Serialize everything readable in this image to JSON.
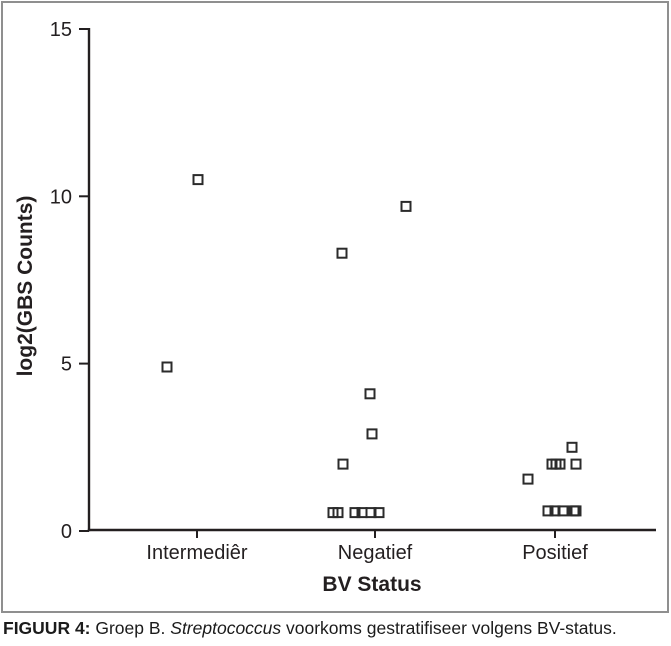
{
  "figure": {
    "caption": {
      "label": "FIGUUR 4:",
      "pre": " Groep B. ",
      "italic": "Streptococcus",
      "post": " voorkoms gestratifiseer volgens BV-status."
    }
  },
  "chart_data": {
    "type": "scatter",
    "title": "",
    "xlabel": "BV Status",
    "ylabel": "log2(GBS Counts)",
    "ylim": [
      0,
      15
    ],
    "yticks": [
      0,
      5,
      10,
      15
    ],
    "ytick_labels": [
      "0",
      "5",
      "10",
      "15"
    ],
    "categories": [
      "Intermediêr",
      "Negatief",
      "Positief"
    ],
    "legend": "none",
    "grid": false,
    "marker": "open-square",
    "marker_color": "#2b2b2b",
    "axis_color": "#231f20",
    "points": [
      {
        "category": "Intermediêr",
        "value": 10.5,
        "dx": 1
      },
      {
        "category": "Intermediêr",
        "value": 4.9,
        "dx": -30
      },
      {
        "category": "Negatief",
        "value": 9.7,
        "dx": 31
      },
      {
        "category": "Negatief",
        "value": 8.3,
        "dx": -33
      },
      {
        "category": "Negatief",
        "value": 4.1,
        "dx": -5
      },
      {
        "category": "Negatief",
        "value": 2.9,
        "dx": -3
      },
      {
        "category": "Negatief",
        "value": 2.0,
        "dx": -32
      },
      {
        "category": "Negatief",
        "value": 0.55,
        "dx": -42
      },
      {
        "category": "Negatief",
        "value": 0.55,
        "dx": -37
      },
      {
        "category": "Negatief",
        "value": 0.55,
        "dx": -20
      },
      {
        "category": "Negatief",
        "value": 0.55,
        "dx": -13
      },
      {
        "category": "Negatief",
        "value": 0.55,
        "dx": -4
      },
      {
        "category": "Negatief",
        "value": 0.55,
        "dx": 4
      },
      {
        "category": "Positief",
        "value": 2.5,
        "dx": 17
      },
      {
        "category": "Positief",
        "value": 2.0,
        "dx": -3
      },
      {
        "category": "Positief",
        "value": 2.0,
        "dx": 1
      },
      {
        "category": "Positief",
        "value": 2.0,
        "dx": 5
      },
      {
        "category": "Positief",
        "value": 2.0,
        "dx": 21
      },
      {
        "category": "Positief",
        "value": 1.55,
        "dx": -27
      },
      {
        "category": "Positief",
        "value": 0.6,
        "dx": -7
      },
      {
        "category": "Positief",
        "value": 0.6,
        "dx": 0
      },
      {
        "category": "Positief",
        "value": 0.6,
        "dx": 8
      },
      {
        "category": "Positief",
        "value": 0.6,
        "dx": 19
      },
      {
        "category": "Positief",
        "value": 0.6,
        "dx": 21
      }
    ]
  }
}
